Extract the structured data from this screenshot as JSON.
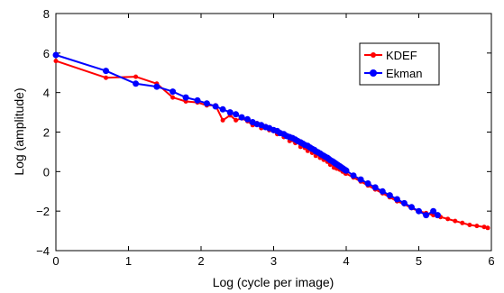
{
  "chart_data": {
    "type": "line",
    "xlabel": "Log (cycle per image)",
    "ylabel": "Log (amplitude)",
    "xlim": [
      0,
      6
    ],
    "ylim": [
      -4,
      8
    ],
    "xticks": [
      "0",
      "1",
      "2",
      "3",
      "4",
      "5",
      "6"
    ],
    "yticks": [
      "−4",
      "−2",
      "0",
      "2",
      "4",
      "6",
      "8"
    ],
    "grid": false,
    "legend_position": "top-right",
    "series": [
      {
        "name": "KDEF",
        "color": "#ff0000",
        "x": [
          0,
          0.69,
          1.1,
          1.39,
          1.61,
          1.79,
          1.95,
          2.08,
          2.2,
          2.3,
          2.4,
          2.48,
          2.56,
          2.64,
          2.71,
          2.77,
          2.83,
          2.89,
          2.94,
          3.0,
          3.05,
          3.09,
          3.14,
          3.18,
          3.22,
          3.26,
          3.3,
          3.33,
          3.37,
          3.4,
          3.43,
          3.47,
          3.5,
          3.53,
          3.56,
          3.58,
          3.61,
          3.64,
          3.66,
          3.69,
          3.71,
          3.74,
          3.76,
          3.78,
          3.81,
          3.83,
          3.85,
          3.87,
          3.89,
          3.91,
          3.93,
          3.95,
          3.97,
          3.99,
          4.0,
          4.1,
          4.2,
          4.3,
          4.4,
          4.5,
          4.6,
          4.7,
          4.8,
          4.9,
          5.0,
          5.1,
          5.2,
          5.3,
          5.4,
          5.5,
          5.6,
          5.7,
          5.8,
          5.9,
          5.95
        ],
        "y": [
          5.6,
          4.75,
          4.8,
          4.45,
          3.75,
          3.55,
          3.5,
          3.35,
          3.35,
          2.6,
          2.85,
          2.6,
          2.7,
          2.55,
          2.35,
          2.45,
          2.2,
          2.3,
          2.1,
          2.05,
          1.9,
          1.95,
          1.75,
          1.8,
          1.55,
          1.6,
          1.45,
          1.5,
          1.25,
          1.35,
          1.2,
          1.05,
          1.15,
          0.95,
          1.0,
          0.8,
          0.9,
          0.7,
          0.8,
          0.6,
          0.7,
          0.5,
          0.55,
          0.35,
          0.45,
          0.2,
          0.35,
          0.15,
          0.25,
          0.1,
          0.15,
          0.0,
          0.05,
          -0.1,
          -0.1,
          -0.3,
          -0.5,
          -0.7,
          -0.9,
          -1.1,
          -1.3,
          -1.5,
          -1.65,
          -1.85,
          -2.0,
          -2.1,
          -2.2,
          -2.3,
          -2.4,
          -2.5,
          -2.6,
          -2.7,
          -2.75,
          -2.8,
          -2.85
        ]
      },
      {
        "name": "Ekman",
        "color": "#0000ff",
        "x": [
          0,
          0.69,
          1.1,
          1.39,
          1.61,
          1.79,
          1.95,
          2.08,
          2.2,
          2.3,
          2.4,
          2.48,
          2.56,
          2.64,
          2.71,
          2.77,
          2.83,
          2.89,
          2.94,
          3.0,
          3.05,
          3.09,
          3.14,
          3.18,
          3.22,
          3.26,
          3.3,
          3.33,
          3.37,
          3.4,
          3.43,
          3.47,
          3.5,
          3.53,
          3.56,
          3.58,
          3.61,
          3.64,
          3.66,
          3.69,
          3.71,
          3.74,
          3.76,
          3.78,
          3.81,
          3.83,
          3.85,
          3.87,
          3.89,
          3.91,
          3.93,
          3.95,
          3.97,
          3.99,
          4.0,
          4.1,
          4.2,
          4.3,
          4.4,
          4.5,
          4.6,
          4.7,
          4.8,
          4.9,
          5.0,
          5.1,
          5.2,
          5.26
        ],
        "y": [
          5.9,
          5.1,
          4.45,
          4.3,
          4.05,
          3.75,
          3.6,
          3.45,
          3.3,
          3.15,
          3.0,
          2.9,
          2.75,
          2.65,
          2.5,
          2.4,
          2.35,
          2.25,
          2.2,
          2.1,
          2.05,
          1.95,
          1.9,
          1.8,
          1.75,
          1.7,
          1.62,
          1.55,
          1.48,
          1.42,
          1.35,
          1.3,
          1.22,
          1.15,
          1.1,
          1.03,
          0.98,
          0.92,
          0.86,
          0.8,
          0.75,
          0.7,
          0.64,
          0.58,
          0.52,
          0.47,
          0.42,
          0.37,
          0.32,
          0.27,
          0.22,
          0.17,
          0.12,
          0.07,
          0.05,
          -0.2,
          -0.4,
          -0.6,
          -0.8,
          -1.0,
          -1.2,
          -1.4,
          -1.6,
          -1.8,
          -2.0,
          -2.2,
          -2.0,
          -2.2
        ]
      }
    ]
  }
}
